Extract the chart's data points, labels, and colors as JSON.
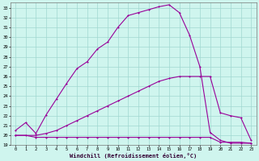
{
  "title": "",
  "xlabel": "Windchill (Refroidissement éolien,°C)",
  "ylabel": "",
  "xlim": [
    -0.5,
    23.5
  ],
  "ylim": [
    19,
    33.5
  ],
  "xticks": [
    0,
    1,
    2,
    3,
    4,
    5,
    6,
    7,
    8,
    9,
    10,
    11,
    12,
    13,
    14,
    15,
    16,
    17,
    18,
    19,
    20,
    21,
    22,
    23
  ],
  "yticks": [
    19,
    20,
    21,
    22,
    23,
    24,
    25,
    26,
    27,
    28,
    29,
    30,
    31,
    32,
    33
  ],
  "bg_color": "#cff5ee",
  "grid_color": "#a0d8d0",
  "line_color": "#990099",
  "line1_x": [
    0,
    1,
    2,
    3,
    4,
    5,
    6,
    7,
    8,
    9,
    10,
    11,
    12,
    13,
    14,
    15,
    16,
    17,
    18,
    19,
    20,
    21,
    22,
    23
  ],
  "line1_y": [
    20.0,
    20.0,
    19.8,
    19.8,
    19.8,
    19.8,
    19.8,
    19.8,
    19.8,
    19.8,
    19.8,
    19.8,
    19.8,
    19.8,
    19.8,
    19.8,
    19.8,
    19.8,
    19.8,
    19.8,
    19.3,
    19.3,
    19.3,
    19.2
  ],
  "line2_x": [
    0,
    2,
    3,
    4,
    5,
    6,
    7,
    8,
    9,
    10,
    11,
    12,
    13,
    14,
    15,
    16,
    17,
    18,
    19,
    20,
    21,
    22,
    23
  ],
  "line2_y": [
    20.0,
    20.0,
    20.2,
    20.5,
    21.0,
    21.5,
    22.0,
    22.5,
    23.0,
    23.5,
    24.0,
    24.5,
    25.0,
    25.5,
    25.8,
    26.0,
    26.0,
    26.0,
    26.0,
    22.3,
    22.0,
    21.8,
    19.5
  ],
  "line3_x": [
    0,
    1,
    2,
    3,
    4,
    5,
    6,
    7,
    8,
    9,
    10,
    11,
    12,
    13,
    14,
    15,
    16,
    17,
    18,
    19,
    20,
    21,
    22,
    23
  ],
  "line3_y": [
    20.5,
    21.3,
    20.2,
    22.1,
    23.7,
    25.3,
    26.8,
    27.5,
    28.8,
    29.5,
    31.0,
    32.2,
    32.5,
    32.8,
    33.1,
    33.3,
    32.5,
    30.2,
    27.0,
    20.3,
    19.5,
    19.2,
    19.2,
    19.2
  ]
}
